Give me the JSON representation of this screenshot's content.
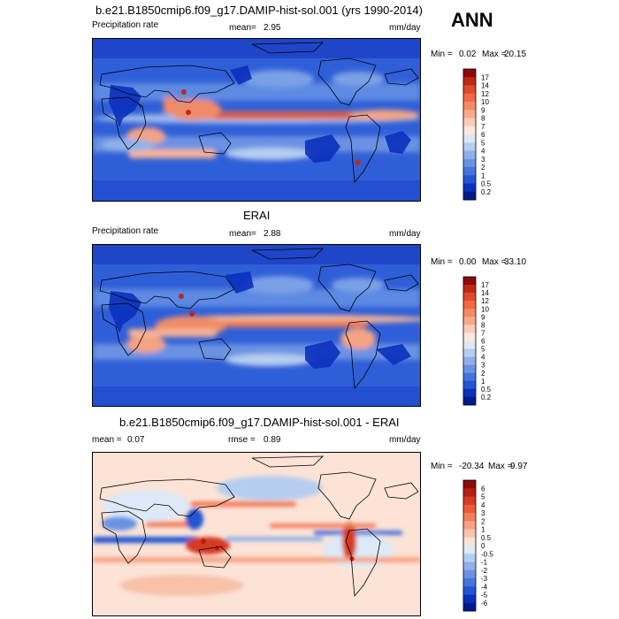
{
  "season": "ANN",
  "chart_data": [
    {
      "type": "heatmap",
      "title": "b.e21.B1850cmip6.f09_g17.DAMIP-hist-sol.001 (yrs 1990-2014)",
      "variable": "Precipitation rate",
      "mean_label": "mean=",
      "mean": "2.95",
      "units": "mm/day",
      "min_label": "Min =",
      "min": "0.02",
      "max_label": "Max =",
      "max": "20.15",
      "colorbar_levels": [
        "17",
        "14",
        "12",
        "10",
        "9",
        "8",
        "7",
        "6",
        "5",
        "4",
        "3",
        "2",
        "1",
        "0.5",
        "0.2"
      ],
      "colorbar_colors": [
        "#8b0a0a",
        "#c0281a",
        "#df4a2a",
        "#f06a44",
        "#f58a66",
        "#f8aa8c",
        "#fbccb6",
        "#fbe8dc",
        "#dde8f7",
        "#b6cdf0",
        "#8fb0ea",
        "#6a92e3",
        "#4574dc",
        "#2354d2",
        "#0a30bd",
        "#001c8c"
      ]
    },
    {
      "type": "heatmap",
      "title": "ERAI",
      "variable": "Precipitation rate",
      "mean_label": "mean=",
      "mean": "2.88",
      "units": "mm/day",
      "min_label": "Min =",
      "min": "0.00",
      "max_label": "Max =",
      "max": "33.10",
      "colorbar_levels": [
        "17",
        "14",
        "12",
        "10",
        "9",
        "8",
        "7",
        "6",
        "5",
        "4",
        "3",
        "2",
        "1",
        "0.5",
        "0.2"
      ],
      "colorbar_colors": [
        "#8b0a0a",
        "#c0281a",
        "#df4a2a",
        "#f06a44",
        "#f58a66",
        "#f8aa8c",
        "#fbccb6",
        "#fbe8dc",
        "#dde8f7",
        "#b6cdf0",
        "#8fb0ea",
        "#6a92e3",
        "#4574dc",
        "#2354d2",
        "#0a30bd",
        "#001c8c"
      ]
    },
    {
      "type": "heatmap",
      "title": "b.e21.B1850cmip6.f09_g17.DAMIP-hist-sol.001 - ERAI",
      "mean_label": "mean =",
      "mean": "0.07",
      "rmse_label": "rmse =",
      "rmse": "0.89",
      "units": "mm/day",
      "min_label": "Min =",
      "min": "-20.34",
      "max_label": "Max =",
      "max": "9.97",
      "colorbar_levels": [
        "6",
        "5",
        "4",
        "3",
        "2",
        "1",
        "0.5",
        "0",
        "-0.5",
        "-1",
        "-2",
        "-3",
        "-4",
        "-5",
        "-6"
      ],
      "colorbar_colors": [
        "#8b0a0a",
        "#b81c16",
        "#d63a24",
        "#ea5a38",
        "#f27e5a",
        "#f7a282",
        "#fac4aa",
        "#fde3d4",
        "#dde9f7",
        "#b6cdf0",
        "#8fb0ea",
        "#6a92e3",
        "#4574dc",
        "#2354d2",
        "#0a30bd",
        "#001c8c"
      ]
    }
  ]
}
